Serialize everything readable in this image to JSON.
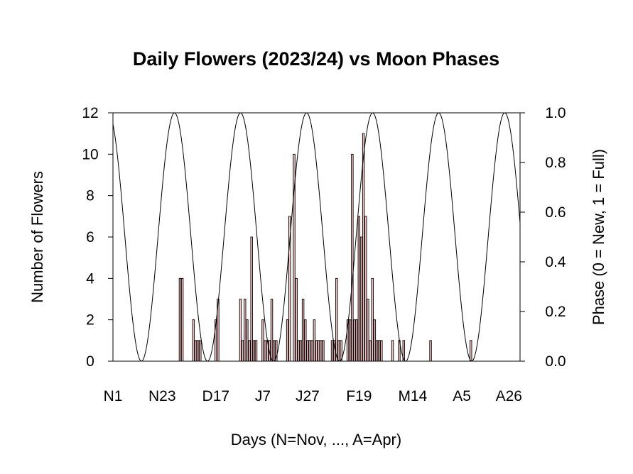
{
  "chart_data": {
    "type": "bar",
    "title": "Daily Flowers (2023/24) vs Moon Phases",
    "xlabel": "Days (N=Nov, ..., A=Apr)",
    "ylabel": "Number of Flowers",
    "y2label": "Phase (0 = New, 1 = Full)",
    "ylim": [
      0,
      12
    ],
    "y2lim": [
      0.0,
      1.0
    ],
    "yticks": [
      "0",
      "2",
      "4",
      "6",
      "8",
      "10",
      "12"
    ],
    "y2ticks": [
      "0.0",
      "0.2",
      "0.4",
      "0.6",
      "0.8",
      "1.0"
    ],
    "xlim": [
      1,
      183
    ],
    "xticks": [
      {
        "label": "N1",
        "day": 1
      },
      {
        "label": "N23",
        "day": 23
      },
      {
        "label": "D17",
        "day": 47
      },
      {
        "label": "J7",
        "day": 68
      },
      {
        "label": "J27",
        "day": 88
      },
      {
        "label": "F19",
        "day": 111
      },
      {
        "label": "M14",
        "day": 135
      },
      {
        "label": "A5",
        "day": 157
      },
      {
        "label": "A26",
        "day": 178
      }
    ],
    "bar_color": "#f3c4c4",
    "bar_edge": "#000000",
    "series": [
      {
        "name": "",
        "kind": "bar",
        "x": [
          31,
          32,
          37,
          38,
          39,
          40,
          47,
          48,
          58,
          59,
          60,
          61,
          62,
          63,
          64,
          65,
          68,
          69,
          70,
          71,
          72,
          73,
          74,
          79,
          80,
          82,
          83,
          84,
          85,
          86,
          87,
          88,
          89,
          90,
          91,
          92,
          93,
          94,
          95,
          99,
          100,
          101,
          102,
          103,
          106,
          107,
          108,
          109,
          110,
          111,
          112,
          113,
          114,
          115,
          116,
          117,
          118,
          119,
          120,
          121,
          126,
          129,
          131,
          143,
          161
        ],
        "values": [
          4,
          4,
          2,
          1,
          1,
          1,
          2,
          3,
          3,
          1,
          3,
          2,
          1,
          6,
          1,
          1,
          2,
          1,
          1,
          1,
          3,
          1,
          1,
          2,
          7,
          10,
          4,
          1,
          1,
          3,
          2,
          1,
          1,
          1,
          2,
          1,
          1,
          1,
          1,
          1,
          1,
          4,
          1,
          1,
          2,
          2,
          10,
          2,
          2,
          7,
          6,
          11,
          7,
          3,
          1,
          4,
          2,
          1,
          1,
          1,
          1,
          1,
          1,
          1,
          1
        ]
      },
      {
        "name": "",
        "kind": "line",
        "formula": "phase(day) = 0.5 + 0.5*cos(2*pi*(day - 28.5)/29.53)"
      }
    ],
    "grid": false,
    "legend": "none"
  }
}
